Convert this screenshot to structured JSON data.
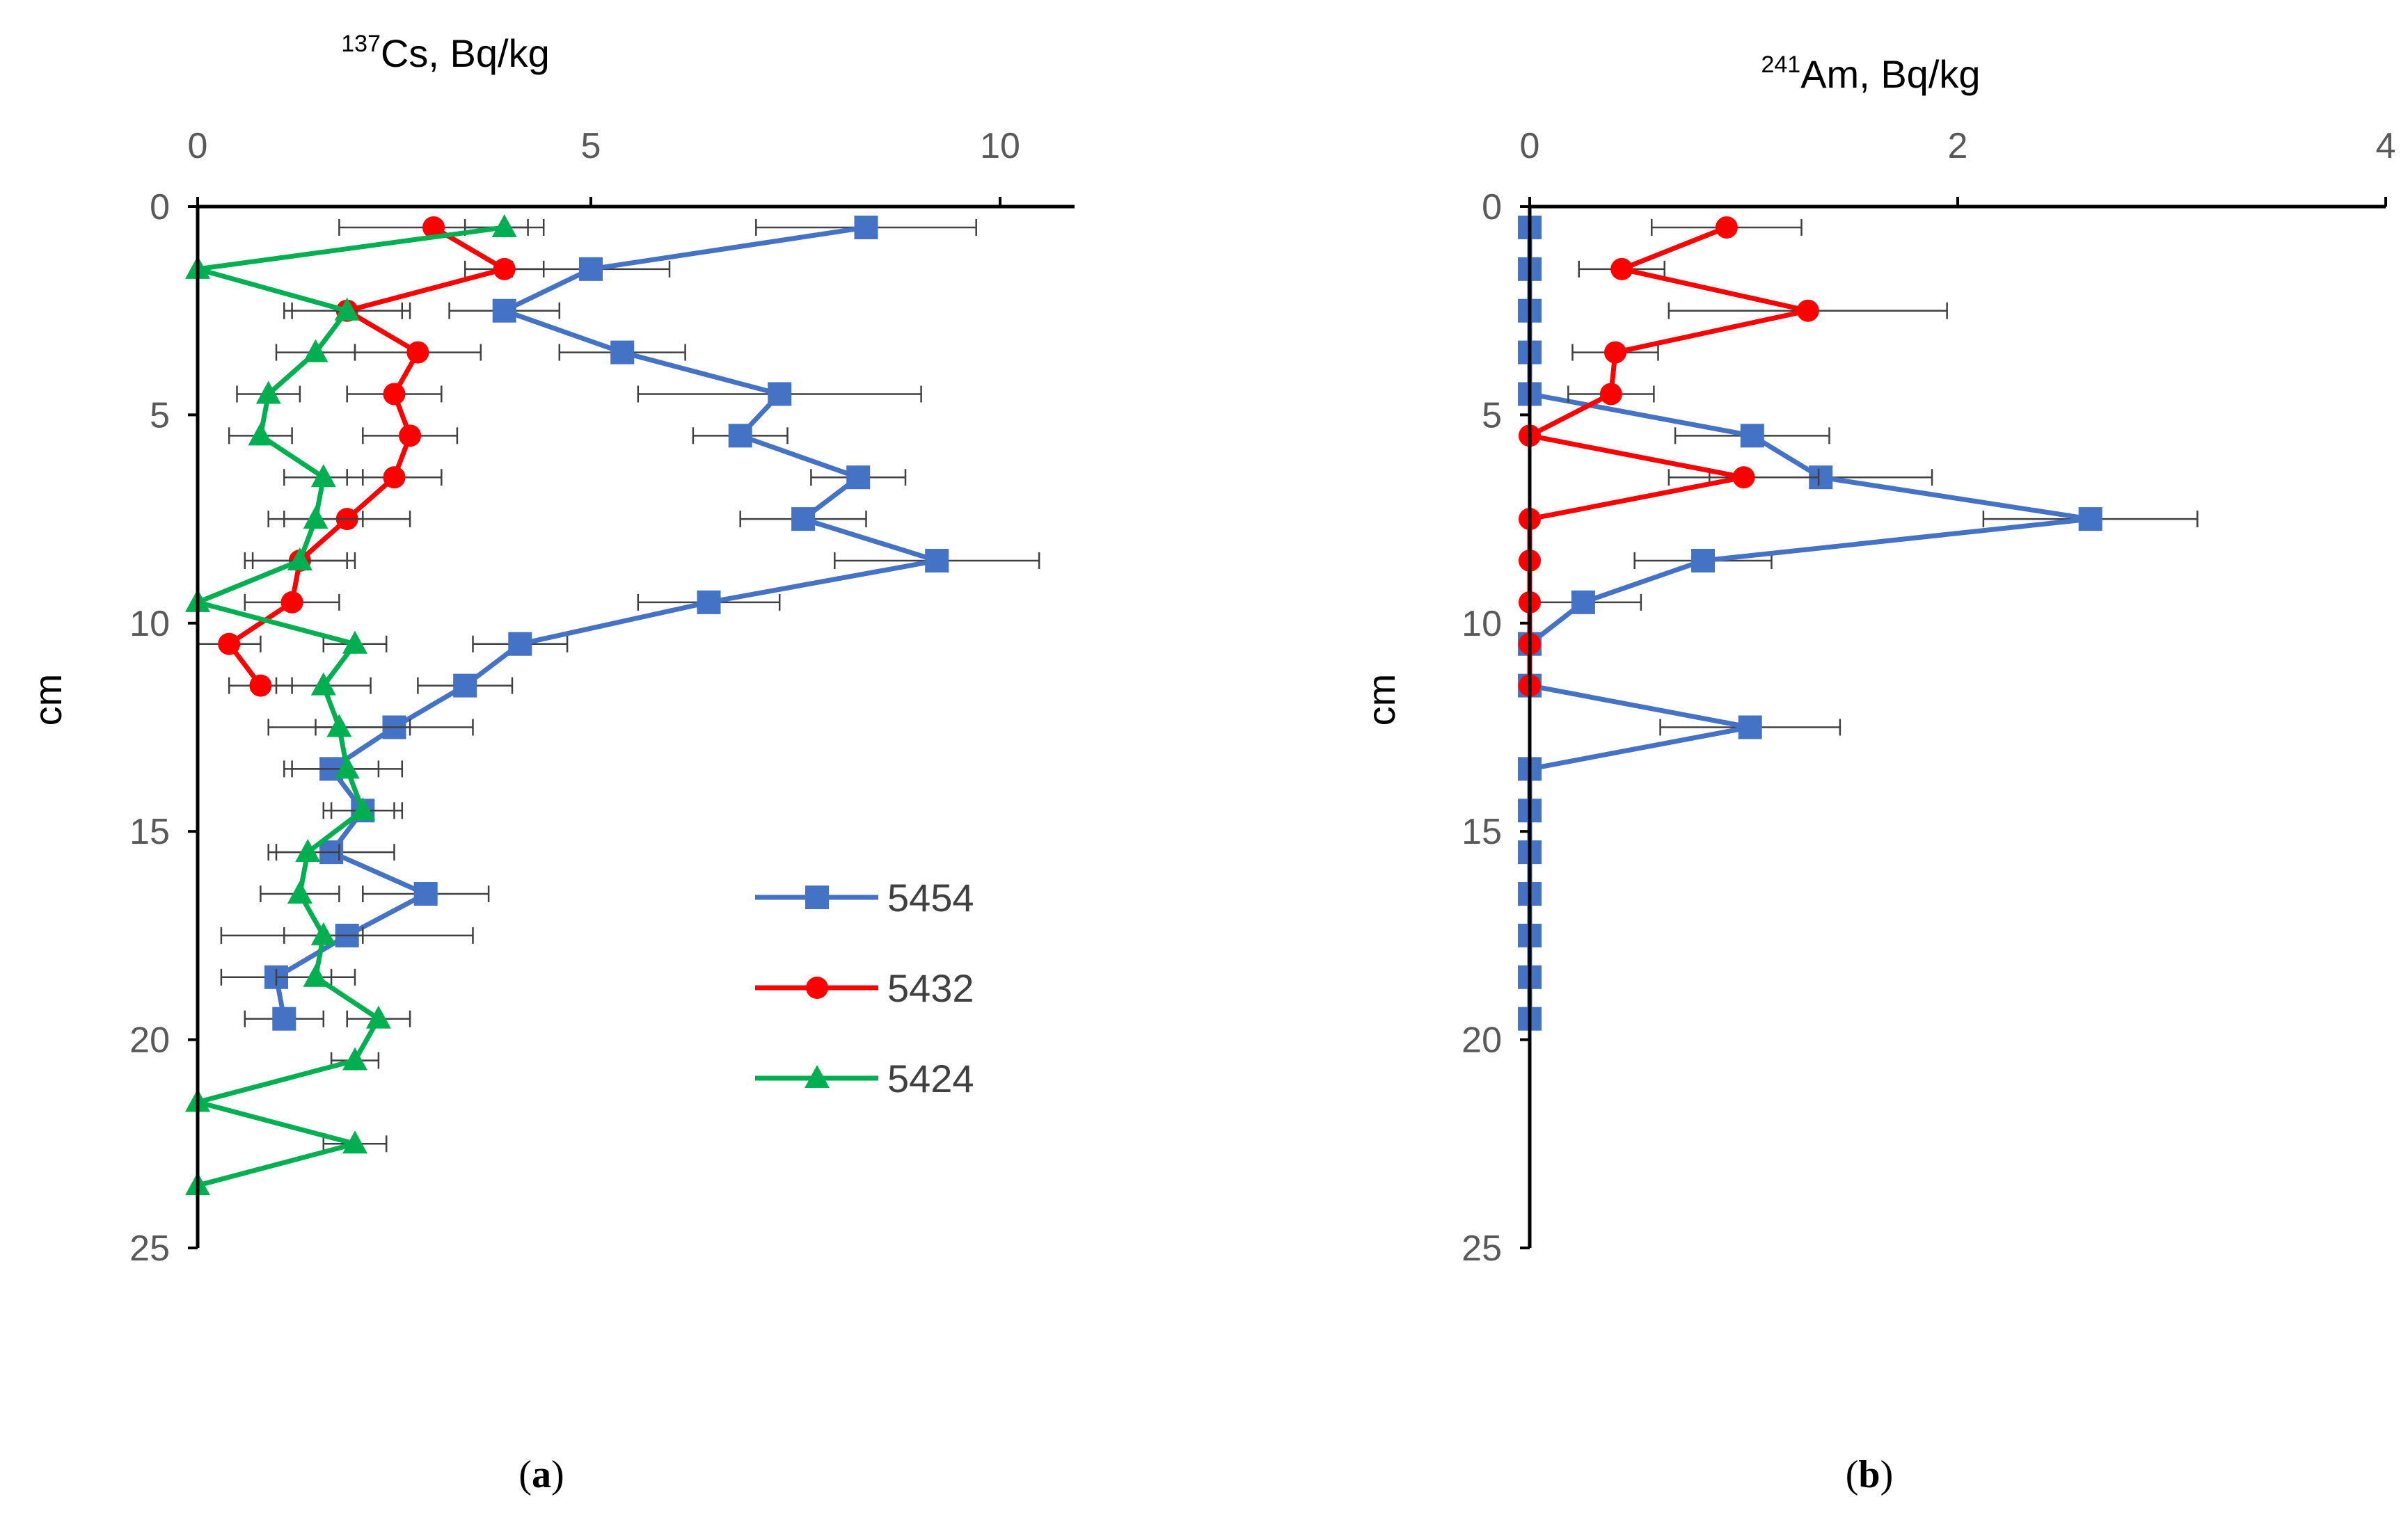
{
  "chart_data": [
    {
      "type": "line",
      "panel_label": "a",
      "title": "Cs, Bq/kg",
      "title_isotope": "137",
      "x_ticks": [
        "0",
        "5",
        "10"
      ],
      "y_ticks": [
        "0",
        "5",
        "10",
        "15",
        "20",
        "25"
      ],
      "ylabel": "cm",
      "xlim": [
        0,
        10.9
      ],
      "ylim": [
        25,
        0
      ],
      "legend_position": "lower-right",
      "series": [
        {
          "name": "5454",
          "color": "#4472C4",
          "marker": "square",
          "depth": [
            0.5,
            1.5,
            2.5,
            3.5,
            4.5,
            5.5,
            6.5,
            7.5,
            8.5,
            9.5,
            10.5,
            11.5,
            12.5,
            13.5,
            14.5,
            15.5,
            16.5,
            17.5,
            18.5,
            19.5
          ],
          "values": [
            8.5,
            5.0,
            3.9,
            5.4,
            7.4,
            6.9,
            8.4,
            7.7,
            9.4,
            6.5,
            4.1,
            3.4,
            2.5,
            1.7,
            2.1,
            1.7,
            2.9,
            1.9,
            1.0,
            1.1
          ],
          "error": [
            1.4,
            1.0,
            0.7,
            0.8,
            1.8,
            0.6,
            0.6,
            0.8,
            1.3,
            0.9,
            0.6,
            0.6,
            1.0,
            0.6,
            0.5,
            0.8,
            0.8,
            1.6,
            0.7,
            0.5
          ]
        },
        {
          "name": "5432",
          "color": "#FF0000",
          "marker": "circle",
          "depth": [
            0.5,
            1.5,
            2.5,
            3.5,
            4.5,
            5.5,
            6.5,
            7.5,
            8.5,
            9.5,
            10.5,
            11.5
          ],
          "values": [
            3.0,
            3.9,
            1.9,
            2.8,
            2.5,
            2.7,
            2.5,
            1.9,
            1.3,
            1.2,
            0.4,
            0.8
          ],
          "error": [
            1.2,
            0.5,
            0.8,
            0.8,
            0.6,
            0.6,
            0.6,
            0.8,
            0.7,
            0.6,
            0.4,
            0.4
          ]
        },
        {
          "name": "5424",
          "color": "#00B050",
          "marker": "triangle",
          "depth": [
            0.5,
            1.5,
            2.5,
            3.5,
            4.5,
            5.5,
            6.5,
            7.5,
            8.5,
            9.5,
            10.5,
            11.5,
            12.5,
            13.5,
            14.5,
            15.5,
            16.5,
            17.5,
            18.5,
            19.5,
            20.5,
            21.5,
            22.5,
            23.5
          ],
          "values": [
            3.9,
            0.0,
            1.9,
            1.5,
            0.9,
            0.8,
            1.6,
            1.5,
            1.3,
            0.0,
            2.0,
            1.6,
            1.8,
            1.9,
            2.1,
            1.4,
            1.3,
            1.6,
            1.5,
            2.3,
            2.0,
            0.0,
            2.0,
            0.0
          ],
          "error": [
            0.5,
            0.0,
            0.7,
            0.5,
            0.4,
            0.4,
            0.5,
            0.6,
            0.6,
            0.0,
            0.4,
            0.6,
            0.9,
            0.7,
            0.4,
            0.4,
            0.5,
            0.5,
            0.5,
            0.4,
            0.3,
            0.0,
            0.4,
            0.0
          ]
        }
      ]
    },
    {
      "type": "line",
      "panel_label": "b",
      "title": "Am, Bq/kg",
      "title_isotope": "241",
      "x_ticks": [
        "0",
        "2",
        "4"
      ],
      "y_ticks": [
        "0",
        "5",
        "10",
        "15",
        "20",
        "25"
      ],
      "ylabel": "cm",
      "xlim": [
        0,
        4
      ],
      "ylim": [
        25,
        0
      ],
      "series": [
        {
          "name": "5454",
          "color": "#4472C4",
          "marker": "square",
          "depth": [
            0.5,
            1.5,
            2.5,
            3.5,
            4.5,
            5.5,
            6.5,
            7.5,
            8.5,
            9.5,
            10.5,
            11.5,
            12.5,
            13.5,
            14.5,
            15.5,
            16.5,
            17.5,
            18.5,
            19.5
          ],
          "values": [
            0,
            0,
            0,
            0,
            0,
            1.04,
            1.36,
            2.62,
            0.81,
            0.25,
            0,
            0,
            1.03,
            0,
            0,
            0,
            0,
            0,
            0,
            0
          ],
          "error": [
            0,
            0,
            0,
            0,
            0,
            0.36,
            0.52,
            0.5,
            0.32,
            0.27,
            0,
            0,
            0.42,
            0,
            0,
            0,
            0,
            0,
            0,
            0
          ]
        },
        {
          "name": "5432",
          "color": "#FF0000",
          "marker": "circle",
          "depth": [
            0.5,
            1.5,
            2.5,
            3.5,
            4.5,
            5.5,
            6.5,
            7.5,
            8.5,
            9.5,
            10.5,
            11.5
          ],
          "values": [
            0.92,
            0.43,
            1.3,
            0.4,
            0.38,
            0,
            1.0,
            0,
            0,
            0,
            0,
            0
          ],
          "error": [
            0.35,
            0.2,
            0.65,
            0.2,
            0.2,
            0,
            0.35,
            0,
            0,
            0,
            0,
            0
          ]
        }
      ]
    }
  ]
}
